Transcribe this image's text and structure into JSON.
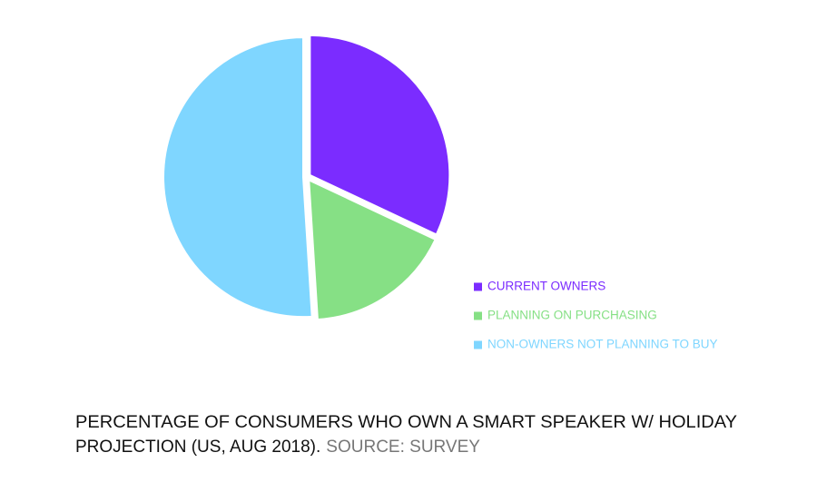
{
  "chart_data": {
    "type": "pie",
    "categories": [
      "CURRENT OWNERS",
      "PLANNING ON PURCHASING",
      "NON-OWNERS NOT PLANNING TO BUY"
    ],
    "values": [
      32,
      17,
      51
    ],
    "colors": [
      "#7b2cff",
      "#86e085",
      "#7fd6ff"
    ],
    "title": [
      "PERCENTAGE OF CONSUMERS WHO OWN A SMART SPEAKER W/ HOLIDAY",
      "PROJECTION (US, AUG 2018)."
    ],
    "source": "SOURCE: SURVEY",
    "legend": "lower right"
  }
}
